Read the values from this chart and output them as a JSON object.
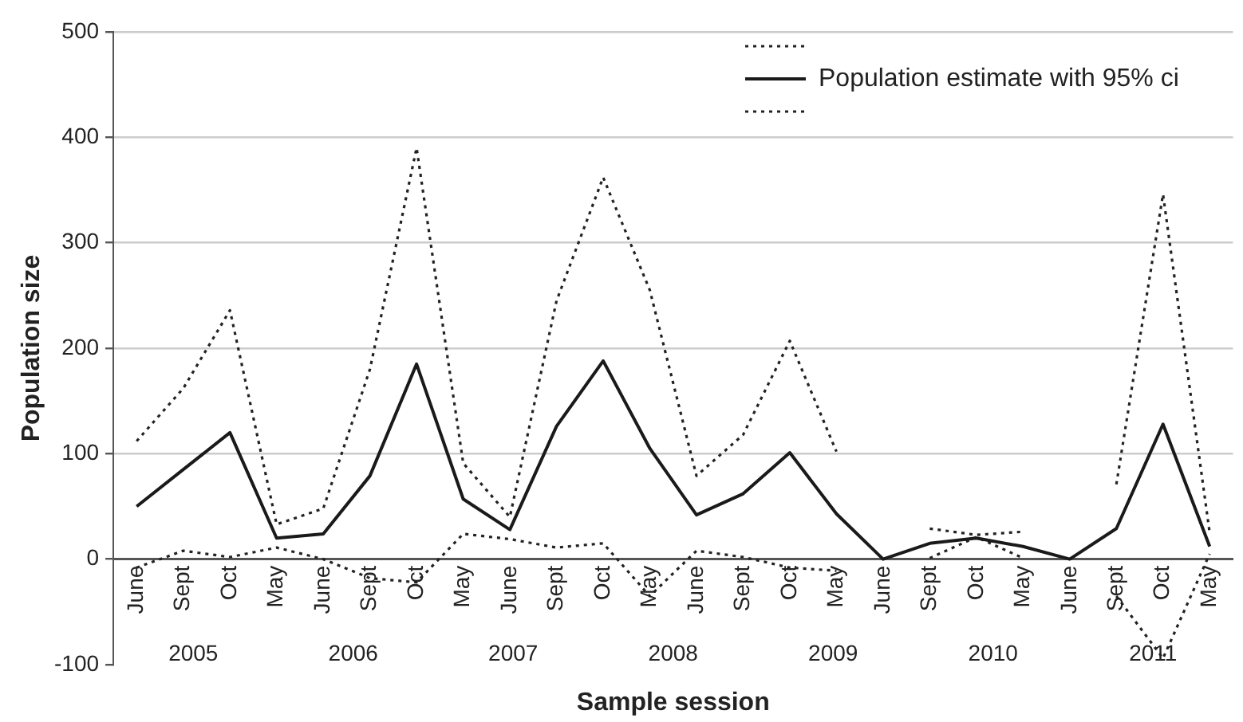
{
  "chart_data": {
    "type": "line",
    "xlabel": "Sample session",
    "ylabel": "Population size",
    "categories": [
      "June",
      "Sept",
      "Oct",
      "May",
      "June",
      "Sept",
      "Oct",
      "May",
      "June",
      "Sept",
      "Oct",
      "May",
      "June",
      "Sept",
      "Oct",
      "May",
      "June",
      "Sept",
      "Oct",
      "May",
      "June",
      "Sept",
      "Oct",
      "May"
    ],
    "series": [
      {
        "color": "#222222",
        "line_style": "dotted",
        "values": [
          112,
          162,
          236,
          33,
          48,
          180,
          390,
          91,
          40,
          245,
          362,
          255,
          79,
          118,
          207,
          102,
          null,
          29,
          23,
          26,
          null,
          71,
          346,
          25
        ]
      },
      {
        "name": "Population estimate with 95% ci",
        "color": "#1a1a1a",
        "line_style": "solid",
        "values": [
          50,
          85,
          120,
          20,
          24,
          79,
          185,
          57,
          28,
          126,
          188,
          105,
          42,
          62,
          101,
          43,
          0,
          15,
          20,
          12,
          0,
          29,
          128,
          12
        ]
      },
      {
        "color": "#222222",
        "line_style": "dotted",
        "values": [
          -8,
          8,
          2,
          11,
          0,
          -18,
          -22,
          24,
          19,
          11,
          15,
          -35,
          8,
          2,
          -8,
          -11,
          null,
          1,
          21,
          1,
          null,
          -35,
          -94,
          5
        ]
      }
    ],
    "ylim": [
      -100,
      500
    ],
    "yticks": [
      -100,
      0,
      100,
      200,
      300,
      400,
      500
    ],
    "grid": "y",
    "legend": "top right",
    "marker": "none",
    "annotations": [
      "2005",
      "2006",
      "2007",
      "2008",
      "2009",
      "2010",
      "2011"
    ]
  }
}
